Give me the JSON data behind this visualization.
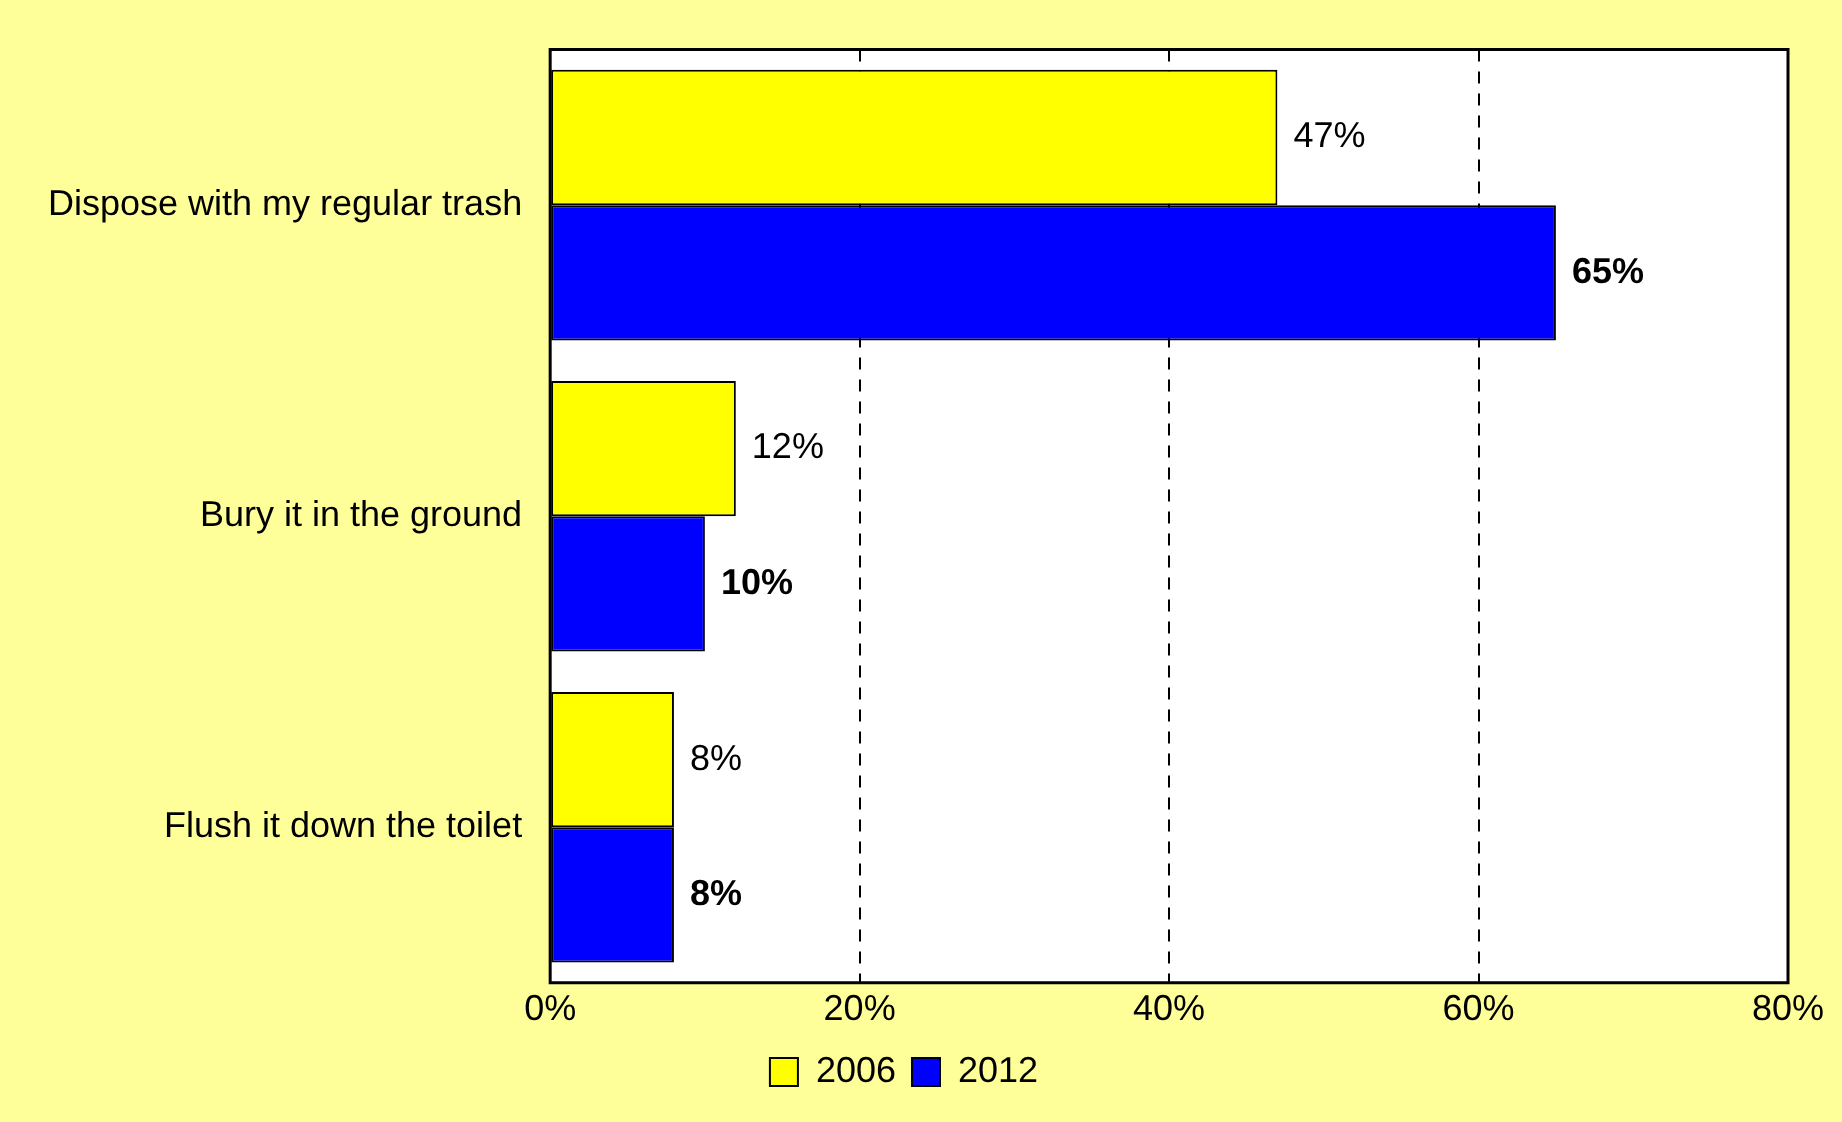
{
  "chart_data": {
    "type": "bar",
    "orientation": "horizontal",
    "categories": [
      "Dispose with my regular trash",
      "Bury it in the ground",
      "Flush it down the toilet"
    ],
    "series": [
      {
        "name": "2006",
        "color": "#ffff00",
        "values": [
          47,
          12,
          8
        ],
        "value_labels": [
          "47%",
          "12%",
          "8%"
        ]
      },
      {
        "name": "2012",
        "color": "#0000ff",
        "values": [
          65,
          10,
          8
        ],
        "value_labels": [
          "65%",
          "10%",
          "8%"
        ]
      }
    ],
    "xlim": [
      0,
      80
    ],
    "xticks": [
      {
        "value": 0,
        "label": "0%"
      },
      {
        "value": 20,
        "label": "20%"
      },
      {
        "value": 40,
        "label": "40%"
      },
      {
        "value": 60,
        "label": "60%"
      },
      {
        "value": 80,
        "label": "80%"
      }
    ],
    "grid": "x",
    "legend": "bottom"
  }
}
